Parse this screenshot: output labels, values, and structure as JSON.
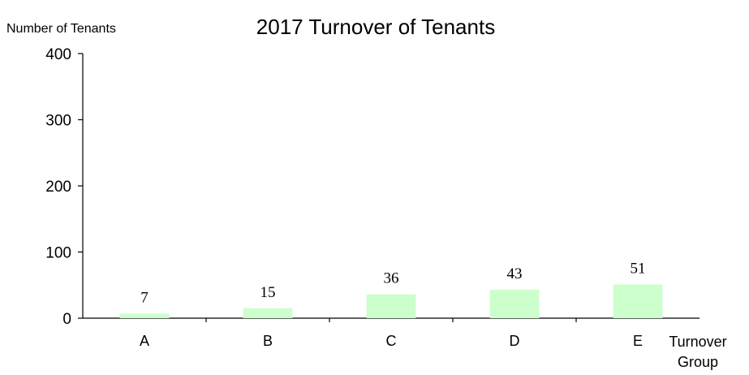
{
  "chart_data": {
    "type": "bar",
    "title": "2017 Turnover of Tenants",
    "ylabel": "Number of Tenants",
    "xlabel_line1": "Turnover",
    "xlabel_line2": "Group",
    "categories": [
      "A",
      "B",
      "C",
      "D",
      "E"
    ],
    "values": [
      7,
      15,
      36,
      43,
      51
    ],
    "ylim": [
      0,
      400
    ],
    "yticks": [
      0,
      100,
      200,
      300,
      400
    ],
    "grid": false,
    "bar_color": "#ccffcc",
    "data_labels": true
  }
}
